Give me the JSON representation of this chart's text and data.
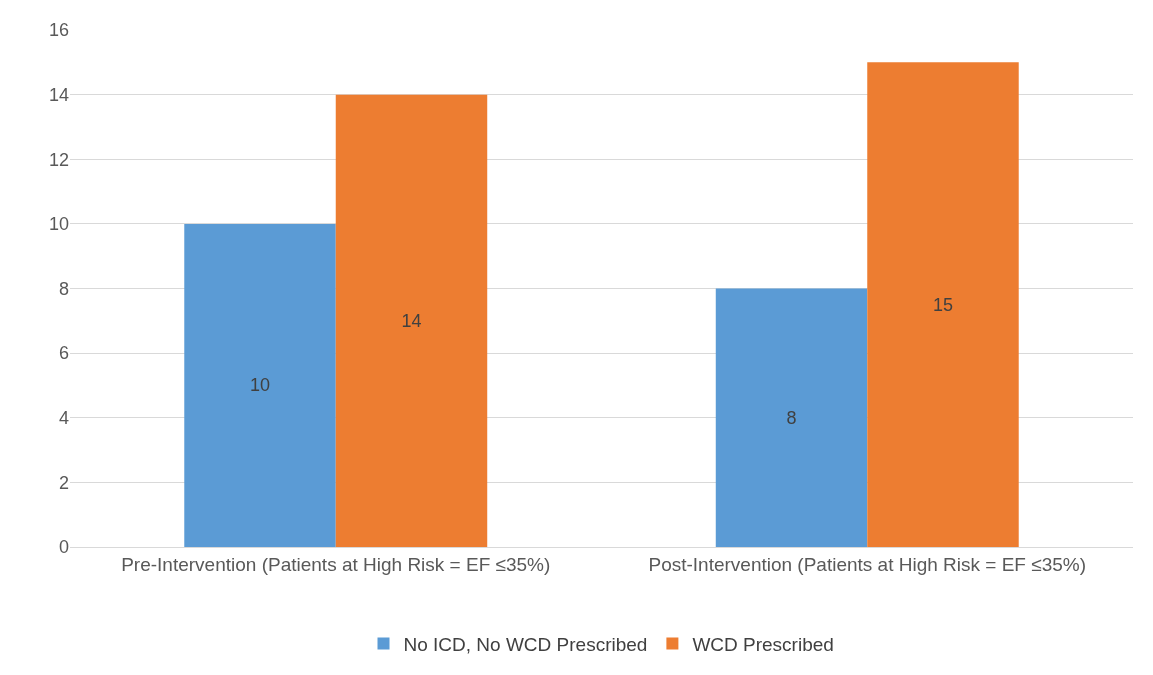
{
  "chart_data": {
    "type": "bar",
    "categories": [
      "Pre-Intervention (Patients at High Risk = EF ≤35%)",
      "Post-Intervention (Patients at High Risk = EF ≤35%)"
    ],
    "series": [
      {
        "name": "No ICD, No WCD Prescribed",
        "color": "#5b9bd5",
        "values": [
          10,
          8
        ]
      },
      {
        "name": "WCD Prescribed",
        "color": "#ed7d31",
        "values": [
          14,
          15
        ]
      }
    ],
    "ylim": [
      0,
      16
    ],
    "yticks": [
      0,
      2,
      4,
      6,
      8,
      10,
      12,
      14,
      16
    ],
    "grid": "y",
    "legend": "bottom",
    "data_labels": true
  }
}
